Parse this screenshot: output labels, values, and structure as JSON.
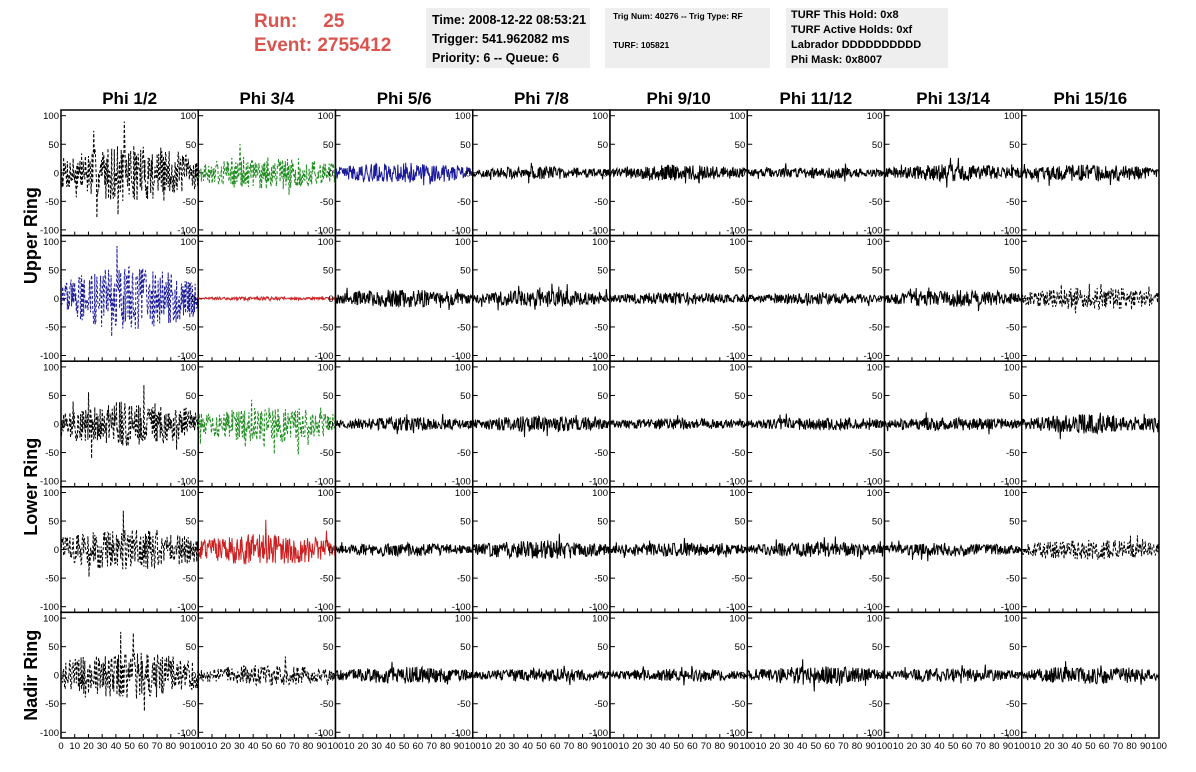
{
  "header": {
    "run_label": "Run:",
    "run_value": "25",
    "event_label": "Event:",
    "event_value": "2755412"
  },
  "info_panels": {
    "time": "Time: 2008-12-22 08:53:21",
    "trigger": "Trigger: 541.962082 ms",
    "priority_queue": "Priority: 6 -- Queue: 6",
    "trig_num_type": "Trig Num: 40276 -- Trig Type: RF",
    "turf": "TURF: 105821",
    "turf_this_hold": "TURF This Hold: 0x8",
    "turf_active_holds": "TURF Active Holds: 0xf",
    "labrador": "Labrador DDDDDDDDDD",
    "phi_mask": "Phi Mask: 0x8007"
  },
  "chart_data": {
    "type": "line",
    "columns": [
      "Phi 1/2",
      "Phi 3/4",
      "Phi 5/6",
      "Phi 7/8",
      "Phi 9/10",
      "Phi 11/12",
      "Phi 13/14",
      "Phi 15/16"
    ],
    "ring_labels": [
      "Upper Ring",
      "Lower Ring",
      "Nadir Ring"
    ],
    "rows": 5,
    "ylim": [
      -110,
      110
    ],
    "yticks": [
      -100,
      -50,
      0,
      50,
      100
    ],
    "xlim": [
      0,
      100
    ],
    "xticks": [
      0,
      10,
      20,
      30,
      40,
      50,
      60,
      70,
      80,
      90,
      100
    ],
    "colors": {
      "black": "#000000",
      "green": "#1e8c1e",
      "blue": "#1a1a9a",
      "red": "#cc2020"
    },
    "panels": [
      [
        {
          "color": "black",
          "style": "dashed",
          "amp": 50
        },
        {
          "color": "green",
          "style": "dashed",
          "amp": 30
        },
        {
          "color": "blue",
          "style": "solid",
          "amp": 18
        },
        {
          "color": "black",
          "style": "solid",
          "amp": 11
        },
        {
          "color": "black",
          "style": "solid",
          "amp": 14
        },
        {
          "color": "black",
          "style": "solid",
          "amp": 10
        },
        {
          "color": "black",
          "style": "solid",
          "amp": 15
        },
        {
          "color": "black",
          "style": "solid",
          "amp": 15
        }
      ],
      [
        {
          "color": "blue",
          "style": "dashed",
          "amp": 55
        },
        {
          "color": "red",
          "style": "solid",
          "amp": 3
        },
        {
          "color": "black",
          "style": "solid",
          "amp": 16
        },
        {
          "color": "black",
          "style": "solid",
          "amp": 15
        },
        {
          "color": "black",
          "style": "solid",
          "amp": 11
        },
        {
          "color": "black",
          "style": "solid",
          "amp": 10
        },
        {
          "color": "black",
          "style": "solid",
          "amp": 15
        },
        {
          "color": "black",
          "style": "dashed",
          "amp": 20
        }
      ],
      [
        {
          "color": "black",
          "style": "dashed",
          "amp": 40
        },
        {
          "color": "green",
          "style": "dashed",
          "amp": 32
        },
        {
          "color": "black",
          "style": "solid",
          "amp": 12
        },
        {
          "color": "black",
          "style": "solid",
          "amp": 14
        },
        {
          "color": "black",
          "style": "solid",
          "amp": 10
        },
        {
          "color": "black",
          "style": "solid",
          "amp": 11
        },
        {
          "color": "black",
          "style": "solid",
          "amp": 12
        },
        {
          "color": "black",
          "style": "solid",
          "amp": 17
        }
      ],
      [
        {
          "color": "black",
          "style": "dashed",
          "amp": 38
        },
        {
          "color": "red",
          "style": "solid",
          "amp": 28
        },
        {
          "color": "black",
          "style": "solid",
          "amp": 12
        },
        {
          "color": "black",
          "style": "solid",
          "amp": 17
        },
        {
          "color": "black",
          "style": "solid",
          "amp": 12
        },
        {
          "color": "black",
          "style": "solid",
          "amp": 13
        },
        {
          "color": "black",
          "style": "solid",
          "amp": 12
        },
        {
          "color": "black",
          "style": "dashed",
          "amp": 18
        }
      ],
      [
        {
          "color": "black",
          "style": "dashed",
          "amp": 42
        },
        {
          "color": "black",
          "style": "dashed",
          "amp": 18
        },
        {
          "color": "black",
          "style": "solid",
          "amp": 15
        },
        {
          "color": "black",
          "style": "solid",
          "amp": 12
        },
        {
          "color": "black",
          "style": "solid",
          "amp": 11
        },
        {
          "color": "black",
          "style": "solid",
          "amp": 16
        },
        {
          "color": "black",
          "style": "solid",
          "amp": 12
        },
        {
          "color": "black",
          "style": "solid",
          "amp": 16
        }
      ]
    ]
  }
}
